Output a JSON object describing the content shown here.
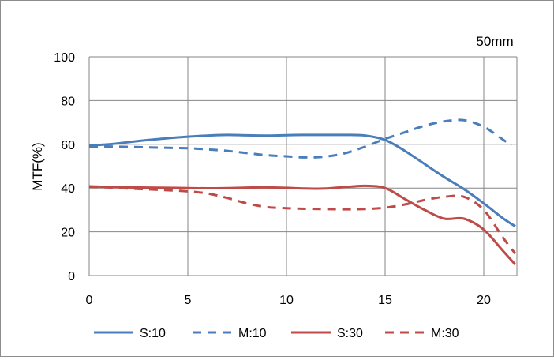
{
  "chart_data": {
    "type": "line",
    "title": "50mm",
    "xlabel": "",
    "ylabel": "MTF(%)",
    "xlim": [
      0,
      21.6
    ],
    "ylim": [
      0,
      100
    ],
    "x_ticks": [
      0,
      5,
      10,
      15,
      20
    ],
    "y_ticks": [
      0,
      20,
      40,
      60,
      80,
      100
    ],
    "grid": true,
    "legend_position": "bottom",
    "series": [
      {
        "name": "S:10",
        "color": "#4a7ebb",
        "dash": "solid",
        "x": [
          0,
          1,
          2,
          3,
          4,
          5,
          6,
          7,
          8,
          9,
          10,
          11,
          12,
          13,
          14,
          15,
          16,
          17,
          18,
          19,
          20,
          21,
          21.6
        ],
        "y": [
          59.5,
          60,
          61,
          62,
          62.8,
          63.5,
          64,
          64.3,
          64.1,
          64,
          64.2,
          64.3,
          64.3,
          64.3,
          64,
          62,
          57,
          51,
          45,
          39.5,
          33,
          26,
          22.5
        ]
      },
      {
        "name": "M:10",
        "color": "#4a7ebb",
        "dash": "dashed",
        "x": [
          0,
          1,
          2,
          3,
          4,
          5,
          6,
          7,
          8,
          9,
          10,
          11,
          12,
          13,
          14,
          15,
          16,
          17,
          18,
          19,
          20,
          21,
          21.4
        ],
        "y": [
          59,
          59,
          58.8,
          58.6,
          58.4,
          58.2,
          57.7,
          57,
          56,
          55,
          54.5,
          54,
          54.4,
          56,
          59,
          62.5,
          65.5,
          68.5,
          70.5,
          71,
          68,
          62,
          59.5
        ]
      },
      {
        "name": "S:30",
        "color": "#be4b48",
        "dash": "solid",
        "x": [
          0,
          1,
          2,
          3,
          4,
          5,
          6,
          7,
          8,
          9,
          10,
          11,
          12,
          13,
          14,
          15,
          16,
          17,
          18,
          19,
          20,
          21,
          21.6
        ],
        "y": [
          40.8,
          40.5,
          40.3,
          40.2,
          40.1,
          40,
          39.9,
          40,
          40.2,
          40.3,
          40.1,
          39.8,
          39.8,
          40.5,
          41,
          40,
          35,
          30,
          26,
          26,
          21,
          11,
          5
        ]
      },
      {
        "name": "M:30",
        "color": "#be4b48",
        "dash": "dashed",
        "x": [
          0,
          1,
          2,
          3,
          4,
          5,
          6,
          7,
          8,
          9,
          10,
          11,
          12,
          13,
          14,
          15,
          16,
          17,
          18,
          19,
          20,
          21,
          21.6
        ],
        "y": [
          40.5,
          40.3,
          39.8,
          39.4,
          39,
          38.5,
          37.5,
          35.5,
          33,
          31.3,
          30.8,
          30.5,
          30.4,
          30.3,
          30.4,
          31,
          32.5,
          34.5,
          36,
          36,
          30,
          17,
          10
        ]
      }
    ]
  }
}
